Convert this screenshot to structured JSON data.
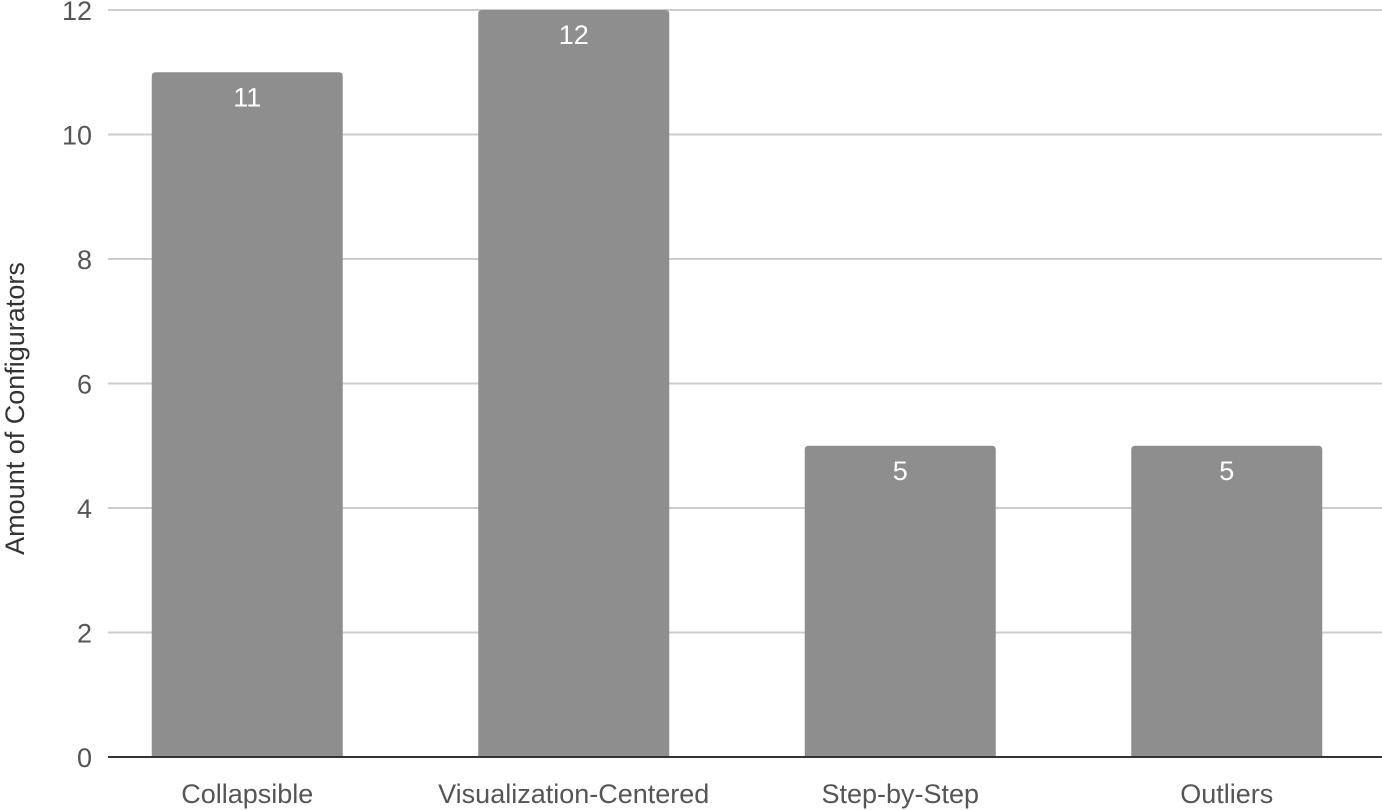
{
  "chart_data": {
    "type": "bar",
    "title": "",
    "xlabel": "",
    "ylabel": "Amount of Configurators",
    "categories": [
      "Collapsible",
      "Visualization-Centered",
      "Step-by-Step",
      "Outliers"
    ],
    "series": [
      {
        "values": [
          11,
          12,
          5,
          5
        ]
      }
    ],
    "data_labels": [
      "11",
      "12",
      "5",
      "5"
    ],
    "ylim": [
      0,
      12
    ],
    "yticks": [
      "0",
      "2",
      "4",
      "6",
      "8",
      "10",
      "12"
    ],
    "grid": true,
    "legend": "none",
    "colors": {
      "bar": "#8e8e8e",
      "grid": "#cccccc",
      "baseline": "#333333"
    }
  }
}
